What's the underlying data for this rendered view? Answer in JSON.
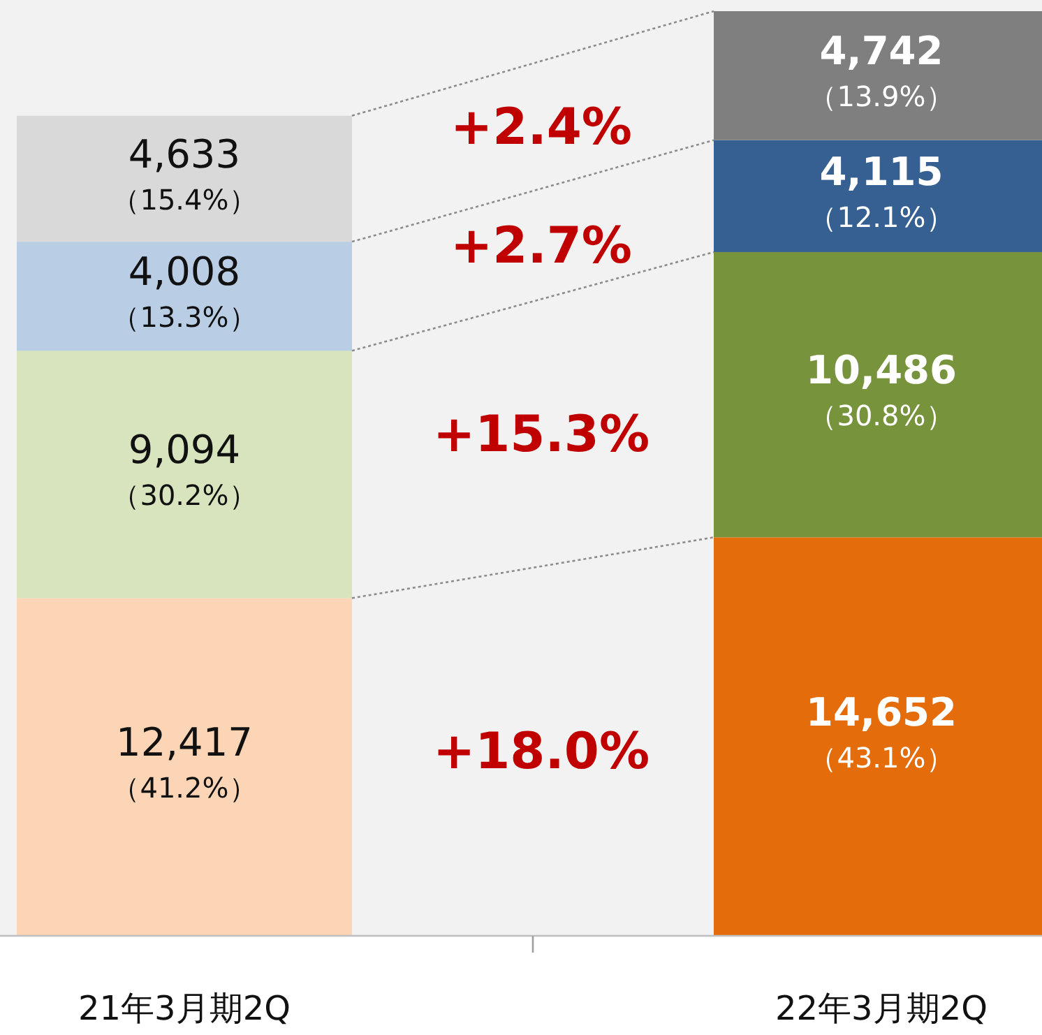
{
  "chart_data": {
    "type": "bar",
    "stacked": true,
    "categories": [
      "21年3月期2Q",
      "22年3月期2Q"
    ],
    "series": [
      {
        "colors": [
          "#fbd5b5",
          "#e46c0a"
        ],
        "values": [
          12417,
          14652
        ],
        "value_labels": [
          "12,417\n（41.2%）",
          "14,652\n（43.1%）"
        ]
      },
      {
        "colors": [
          "#d7e4bd",
          "#77933c"
        ],
        "values": [
          9094,
          10486
        ],
        "value_labels": [
          "9,094\n（30.2%）",
          "10,486\n（30.8%）"
        ]
      },
      {
        "colors": [
          "#b9cde5",
          "#376092"
        ],
        "values": [
          4008,
          4115
        ],
        "value_labels": [
          "4,008\n（13.3%）",
          "4,115\n（12.1%）"
        ]
      },
      {
        "colors": [
          "#d9d9d9",
          "#7f7f7f"
        ],
        "values": [
          4633,
          4742
        ],
        "value_labels": [
          "4,633\n（15.4%）",
          "4,742\n（13.9%）"
        ]
      }
    ],
    "annotations": [
      "+2.4%",
      "+2.7%",
      "+15.3%",
      "+18.0%"
    ]
  }
}
